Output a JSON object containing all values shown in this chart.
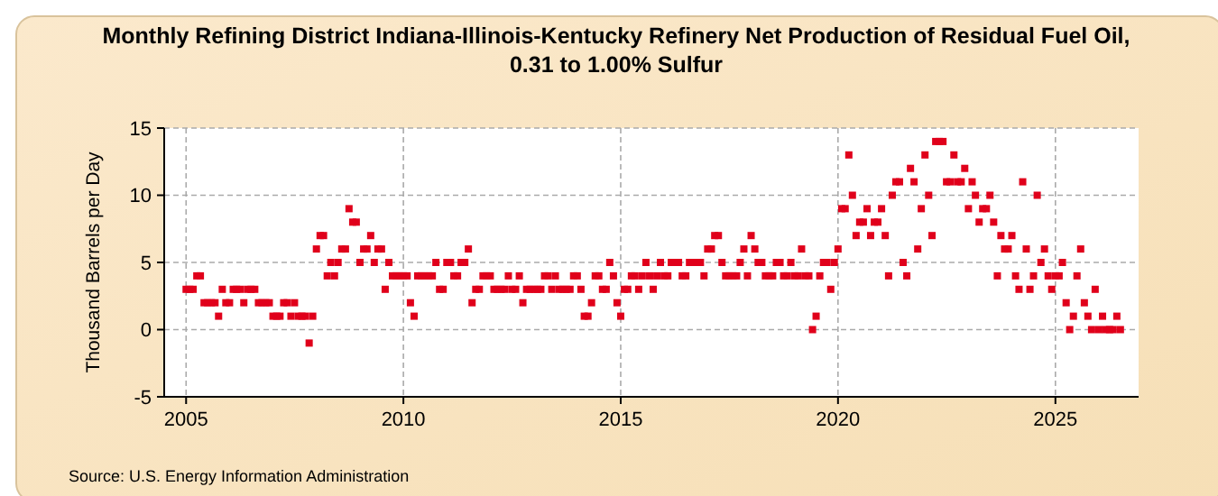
{
  "chart_data": {
    "type": "scatter",
    "title": "Monthly Refining District Indiana-Illinois-Kentucky Refinery Net Production of Residual Fuel Oil, 0.31 to 1.00% Sulfur",
    "ylabel": "Thousand Barrels per Day",
    "annotations": [
      "Source: U.S. Energy Information Administration"
    ],
    "x": [
      "2005-01",
      "2005-02",
      "2005-03",
      "2005-04",
      "2005-05",
      "2005-06",
      "2005-07",
      "2005-08",
      "2005-09",
      "2005-10",
      "2005-11",
      "2005-12",
      "2006-01",
      "2006-02",
      "2006-03",
      "2006-04",
      "2006-05",
      "2006-06",
      "2006-07",
      "2006-08",
      "2006-09",
      "2006-10",
      "2006-11",
      "2006-12",
      "2007-01",
      "2007-02",
      "2007-03",
      "2007-04",
      "2007-05",
      "2007-06",
      "2007-07",
      "2007-08",
      "2007-09",
      "2007-10",
      "2007-11",
      "2007-12",
      "2008-01",
      "2008-02",
      "2008-03",
      "2008-04",
      "2008-05",
      "2008-06",
      "2008-07",
      "2008-08",
      "2008-09",
      "2008-10",
      "2008-11",
      "2008-12",
      "2009-01",
      "2009-02",
      "2009-03",
      "2009-04",
      "2009-05",
      "2009-06",
      "2009-07",
      "2009-08",
      "2009-09",
      "2009-10",
      "2009-11",
      "2009-12",
      "2010-01",
      "2010-02",
      "2010-03",
      "2010-04",
      "2010-05",
      "2010-06",
      "2010-07",
      "2010-08",
      "2010-09",
      "2010-10",
      "2010-11",
      "2010-12",
      "2011-01",
      "2011-02",
      "2011-03",
      "2011-04",
      "2011-05",
      "2011-06",
      "2011-07",
      "2011-08",
      "2011-09",
      "2011-10",
      "2011-11",
      "2011-12",
      "2012-01",
      "2012-02",
      "2012-03",
      "2012-04",
      "2012-05",
      "2012-06",
      "2012-07",
      "2012-08",
      "2012-09",
      "2012-10",
      "2012-11",
      "2012-12",
      "2013-01",
      "2013-02",
      "2013-03",
      "2013-04",
      "2013-05",
      "2013-06",
      "2013-07",
      "2013-08",
      "2013-09",
      "2013-10",
      "2013-11",
      "2013-12",
      "2014-01",
      "2014-02",
      "2014-03",
      "2014-04",
      "2014-05",
      "2014-06",
      "2014-07",
      "2014-08",
      "2014-09",
      "2014-10",
      "2014-11",
      "2014-12",
      "2015-01",
      "2015-02",
      "2015-03",
      "2015-04",
      "2015-05",
      "2015-06",
      "2015-07",
      "2015-08",
      "2015-09",
      "2015-10",
      "2015-11",
      "2015-12",
      "2016-01",
      "2016-02",
      "2016-03",
      "2016-04",
      "2016-05",
      "2016-06",
      "2016-07",
      "2016-08",
      "2016-09",
      "2016-10",
      "2016-11",
      "2016-12",
      "2017-01",
      "2017-02",
      "2017-03",
      "2017-04",
      "2017-05",
      "2017-06",
      "2017-07",
      "2017-08",
      "2017-09",
      "2017-10",
      "2017-11",
      "2017-12",
      "2018-01",
      "2018-02",
      "2018-03",
      "2018-04",
      "2018-05",
      "2018-06",
      "2018-07",
      "2018-08",
      "2018-09",
      "2018-10",
      "2018-11",
      "2018-12",
      "2019-01",
      "2019-02",
      "2019-03",
      "2019-04",
      "2019-05",
      "2019-06",
      "2019-07",
      "2019-08",
      "2019-09",
      "2019-10",
      "2019-11",
      "2019-12",
      "2020-01",
      "2020-02",
      "2020-03",
      "2020-04",
      "2020-05",
      "2020-06",
      "2020-07",
      "2020-08",
      "2020-09",
      "2020-10",
      "2020-11",
      "2020-12",
      "2021-01",
      "2021-02",
      "2021-03",
      "2021-04",
      "2021-05",
      "2021-06",
      "2021-07",
      "2021-08",
      "2021-09",
      "2021-10",
      "2021-11",
      "2021-12",
      "2022-01",
      "2022-02",
      "2022-03",
      "2022-04",
      "2022-05",
      "2022-06",
      "2022-07",
      "2022-08",
      "2022-09",
      "2022-10",
      "2022-11",
      "2022-12",
      "2023-01",
      "2023-02",
      "2023-03",
      "2023-04",
      "2023-05",
      "2023-06",
      "2023-07",
      "2023-08",
      "2023-09",
      "2023-10",
      "2023-11",
      "2023-12",
      "2024-01",
      "2024-02",
      "2024-03",
      "2024-04",
      "2024-05",
      "2024-06",
      "2024-07",
      "2024-08",
      "2024-09",
      "2024-10",
      "2024-11",
      "2024-12",
      "2025-01",
      "2025-02",
      "2025-03",
      "2025-04",
      "2025-05",
      "2025-06",
      "2025-07",
      "2025-08",
      "2025-09",
      "2025-10",
      "2025-11",
      "2025-12",
      "2026-01",
      "2026-02",
      "2026-03",
      "2026-04",
      "2026-05",
      "2026-06",
      "2026-07"
    ],
    "series": [
      {
        "color": "#e0001b",
        "values": [
          3,
          3,
          3,
          4,
          4,
          2,
          2,
          2,
          2,
          1,
          3,
          2,
          2,
          3,
          3,
          3,
          2,
          3,
          3,
          3,
          2,
          2,
          2,
          2,
          1,
          1,
          1,
          2,
          2,
          1,
          2,
          1,
          1,
          1,
          -1,
          1,
          6,
          7,
          7,
          4,
          5,
          4,
          5,
          6,
          6,
          9,
          8,
          8,
          5,
          6,
          6,
          7,
          5,
          6,
          6,
          3,
          5,
          4,
          4,
          4,
          4,
          4,
          2,
          1,
          4,
          4,
          4,
          4,
          4,
          5,
          3,
          3,
          5,
          5,
          4,
          4,
          5,
          5,
          6,
          2,
          3,
          3,
          4,
          4,
          4,
          3,
          3,
          3,
          3,
          4,
          3,
          3,
          4,
          2,
          3,
          3,
          3,
          3,
          3,
          4,
          4,
          3,
          4,
          3,
          3,
          3,
          3,
          4,
          4,
          3,
          1,
          1,
          2,
          4,
          4,
          3,
          3,
          5,
          4,
          2,
          1,
          3,
          3,
          4,
          4,
          3,
          4,
          5,
          4,
          3,
          4,
          5,
          4,
          4,
          5,
          5,
          5,
          4,
          4,
          5,
          5,
          5,
          5,
          4,
          6,
          6,
          7,
          7,
          5,
          4,
          4,
          4,
          4,
          5,
          6,
          4,
          7,
          6,
          5,
          5,
          4,
          4,
          4,
          5,
          5,
          4,
          4,
          5,
          4,
          4,
          6,
          4,
          4,
          0,
          1,
          4,
          5,
          5,
          3,
          5,
          6,
          9,
          9,
          13,
          10,
          7,
          8,
          8,
          9,
          7,
          8,
          8,
          9,
          7,
          4,
          10,
          11,
          11,
          5,
          4,
          12,
          11,
          6,
          9,
          13,
          10,
          7,
          14,
          14,
          14,
          11,
          11,
          13,
          11,
          11,
          12,
          9,
          11,
          10,
          8,
          9,
          9,
          10,
          8,
          4,
          7,
          6,
          6,
          7,
          4,
          3,
          11,
          6,
          3,
          4,
          10,
          5,
          6,
          4,
          3,
          4,
          4,
          5,
          2,
          0,
          1,
          4,
          6,
          2,
          1,
          0,
          3,
          0,
          1,
          0,
          0,
          0,
          1,
          0
        ]
      }
    ],
    "xlim": [
      "2004-07",
      "2026-12"
    ],
    "xticks": [
      "2005",
      "2010",
      "2015",
      "2020",
      "2025"
    ],
    "ylim": [
      -5,
      15
    ],
    "yticks": [
      -5,
      0,
      5,
      10,
      15
    ],
    "grid": true,
    "marker": "square"
  }
}
